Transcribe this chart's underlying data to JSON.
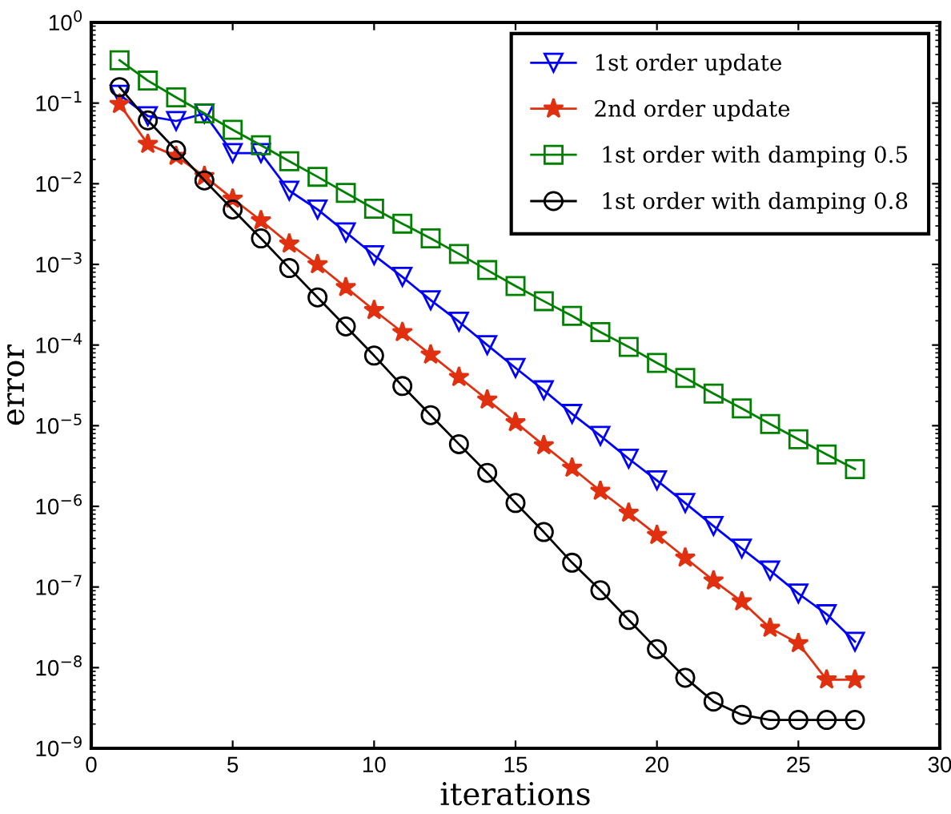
{
  "chart_data": {
    "type": "line",
    "xlabel": "iterations",
    "ylabel": "error",
    "log": "y",
    "x": [
      1,
      2,
      3,
      4,
      5,
      6,
      7,
      8,
      9,
      10,
      11,
      12,
      13,
      14,
      15,
      16,
      17,
      18,
      19,
      20,
      21,
      22,
      23,
      24,
      25,
      26,
      27
    ],
    "xlim": [
      0,
      30
    ],
    "xticks": [
      0,
      5,
      10,
      15,
      20,
      25,
      30
    ],
    "ylim": [
      1e-09,
      1
    ],
    "yticks": [
      {
        "value": 1e-09,
        "label": "10$^{−9}$"
      },
      {
        "value": 1e-08,
        "label": "10$^{−8}$"
      },
      {
        "value": 1e-07,
        "label": "10$^{−7}$"
      },
      {
        "value": 1e-06,
        "label": "10$^{−6}$"
      },
      {
        "value": 1e-05,
        "label": "10$^{−5}$"
      },
      {
        "value": 0.0001,
        "label": "10$^{−4}$"
      },
      {
        "value": 0.001,
        "label": "10$^{−3}$"
      },
      {
        "value": 0.01,
        "label": "10$^{−2}$"
      },
      {
        "value": 0.1,
        "label": "10$^{−1}$"
      },
      {
        "value": 1,
        "label": "10$^{0}$"
      }
    ],
    "grid": false,
    "legend": "top right",
    "line_style": "solid",
    "series": [
      {
        "name": "1st order update",
        "color": "#0000ff",
        "marker": "triangle",
        "values": [
          0.127,
          0.069,
          0.06,
          0.074,
          0.024,
          0.024,
          0.0082,
          0.0048,
          0.0025,
          0.0013,
          0.0007,
          0.00036,
          0.000195,
          0.0001,
          5.2e-05,
          2.75e-05,
          1.4e-05,
          7.5e-06,
          3.9e-06,
          2.1e-06,
          1.1e-06,
          5.7e-07,
          3e-07,
          1.6e-07,
          8.3e-08,
          4.6e-08,
          2.1e-08
        ]
      },
      {
        "name": "2nd order update",
        "color": "#e03010",
        "marker": "star",
        "values": [
          0.097,
          0.031,
          0.022,
          0.0124,
          0.0065,
          0.0035,
          0.0018,
          0.001,
          0.00052,
          0.00027,
          0.000144,
          7.6e-05,
          4e-05,
          2.1e-05,
          1.1e-05,
          5.7e-06,
          3e-06,
          1.55e-06,
          8.3e-07,
          4.4e-07,
          2.3e-07,
          1.2e-07,
          6.6e-08,
          3.1e-08,
          2e-08,
          7.1e-09,
          7.1e-09
        ]
      },
      {
        "name": " 1st order with damping 0.5",
        "color": "#008000",
        "marker": "square",
        "values": [
          0.34,
          0.19,
          0.118,
          0.0746,
          0.0466,
          0.03,
          0.019,
          0.0122,
          0.0077,
          0.0049,
          0.0032,
          0.0021,
          0.00135,
          0.00085,
          0.00054,
          0.00035,
          0.00023,
          0.000145,
          9.5e-05,
          6e-05,
          3.9e-05,
          2.5e-05,
          1.64e-05,
          1.05e-05,
          6.8e-06,
          4.4e-06,
          2.9e-06
        ]
      },
      {
        "name": " 1st order with damping 0.8",
        "color": "#000000",
        "marker": "circle",
        "values": [
          0.158,
          0.061,
          0.026,
          0.011,
          0.0048,
          0.0021,
          0.0009,
          0.00039,
          0.00017,
          7.4e-05,
          3.1e-05,
          1.35e-05,
          5.9e-06,
          2.6e-06,
          1.1e-06,
          4.8e-07,
          2e-07,
          9.1e-08,
          3.9e-08,
          1.7e-08,
          7.5e-09,
          3.8e-09,
          2.6e-09,
          2.25e-09,
          2.25e-09,
          2.25e-09,
          2.25e-09
        ]
      }
    ]
  }
}
